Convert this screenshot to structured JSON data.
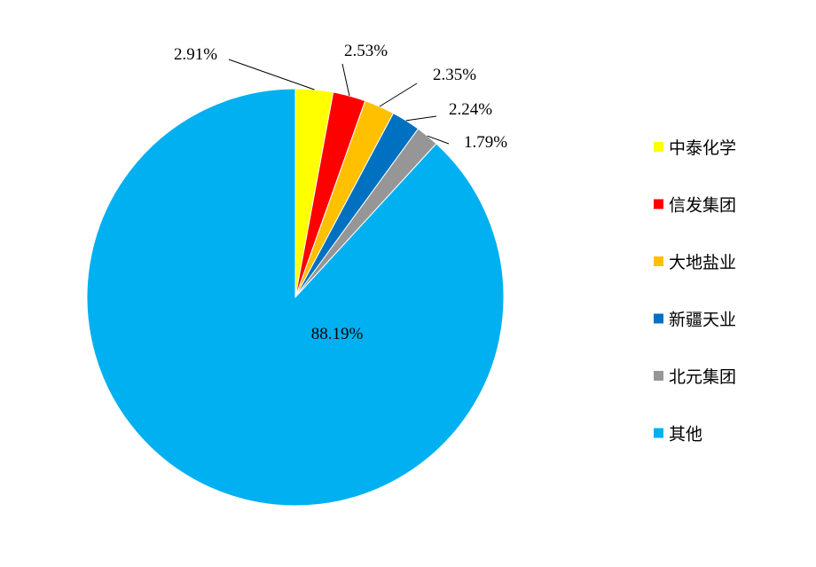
{
  "chart_data": {
    "type": "pie",
    "slices": [
      {
        "name": "中泰化学",
        "value": 2.91,
        "label": "2.91%",
        "color": "#FFFF00"
      },
      {
        "name": "信发集团",
        "value": 2.53,
        "label": "2.53%",
        "color": "#FF0000"
      },
      {
        "name": "大地盐业",
        "value": 2.35,
        "label": "2.35%",
        "color": "#FFC000"
      },
      {
        "name": "新疆天业",
        "value": 2.24,
        "label": "2.24%",
        "color": "#0070C0"
      },
      {
        "name": "北元集团",
        "value": 1.79,
        "label": "1.79%",
        "color": "#969696"
      },
      {
        "name": "其他",
        "value": 88.19,
        "label": "88.19%",
        "color": "#00B0F0"
      }
    ],
    "legend_position": "right",
    "start_angle": "12 o'clock",
    "direction": "clockwise"
  }
}
